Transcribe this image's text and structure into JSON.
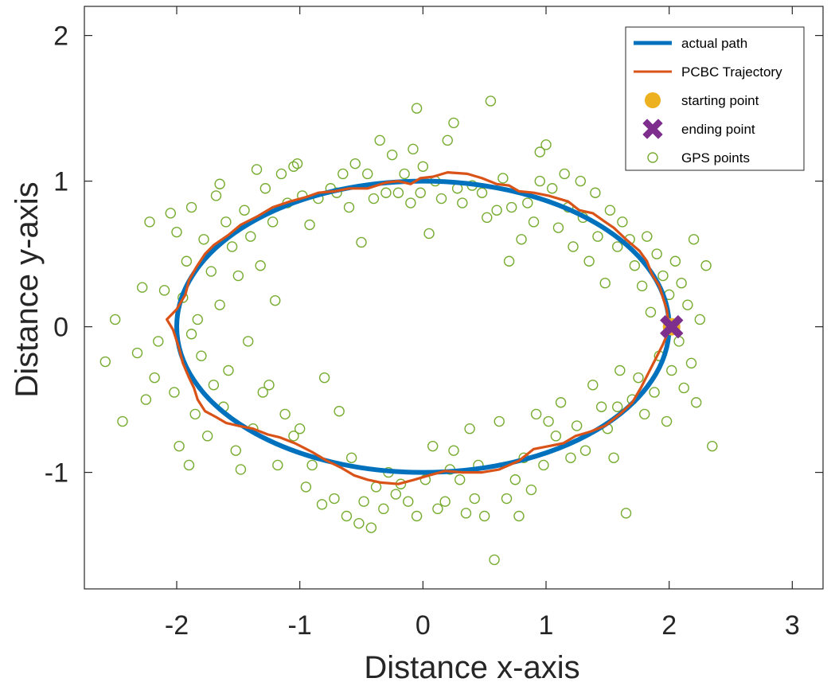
{
  "chart_data": {
    "type": "scatter",
    "xlabel": "Distance x-axis",
    "ylabel": "Distance y-axis",
    "xlim": [
      -2.75,
      3.25
    ],
    "ylim": [
      -1.8,
      2.2
    ],
    "xticks": [
      -2,
      -1,
      0,
      1,
      2,
      3
    ],
    "yticks": [
      -1,
      0,
      1,
      2
    ],
    "grid": false,
    "legend_position": "top-right",
    "colors": {
      "actual_path": "#0072BD",
      "trajectory": "#D95319",
      "start": "#EDB120",
      "end": "#7E2F8E",
      "gps": "#77AC30"
    },
    "legend": [
      "actual path",
      "PCBC Trajectory",
      "starting point",
      "ending point",
      "GPS points"
    ],
    "series": [
      {
        "name": "actual path",
        "kind": "line",
        "shape": "ellipse",
        "center": [
          0,
          0
        ],
        "radius_x": 2,
        "radius_y": 1
      },
      {
        "name": "PCBC Trajectory",
        "kind": "line",
        "points": [
          [
            2.0,
            0.0
          ],
          [
            1.98,
            0.12
          ],
          [
            1.95,
            0.2
          ],
          [
            1.92,
            0.28
          ],
          [
            1.86,
            0.36
          ],
          [
            1.82,
            0.45
          ],
          [
            1.76,
            0.52
          ],
          [
            1.65,
            0.6
          ],
          [
            1.55,
            0.68
          ],
          [
            1.48,
            0.72
          ],
          [
            1.38,
            0.78
          ],
          [
            1.27,
            0.8
          ],
          [
            1.18,
            0.86
          ],
          [
            1.02,
            0.9
          ],
          [
            0.9,
            0.92
          ],
          [
            0.78,
            0.93
          ],
          [
            0.7,
            0.97
          ],
          [
            0.6,
            0.98
          ],
          [
            0.48,
            1.02
          ],
          [
            0.36,
            1.05
          ],
          [
            0.2,
            1.06
          ],
          [
            0.08,
            1.03
          ],
          [
            -0.02,
            1.02
          ],
          [
            -0.1,
            0.98
          ],
          [
            -0.2,
            1.0
          ],
          [
            -0.3,
            0.99
          ],
          [
            -0.45,
            0.95
          ],
          [
            -0.6,
            0.95
          ],
          [
            -0.72,
            0.93
          ],
          [
            -0.85,
            0.92
          ],
          [
            -0.95,
            0.89
          ],
          [
            -1.08,
            0.86
          ],
          [
            -1.22,
            0.82
          ],
          [
            -1.34,
            0.76
          ],
          [
            -1.48,
            0.7
          ],
          [
            -1.58,
            0.63
          ],
          [
            -1.7,
            0.56
          ],
          [
            -1.77,
            0.5
          ],
          [
            -1.84,
            0.41
          ],
          [
            -1.9,
            0.32
          ],
          [
            -1.93,
            0.22
          ],
          [
            -2.0,
            0.12
          ],
          [
            -2.08,
            0.05
          ],
          [
            -2.03,
            -0.02
          ],
          [
            -1.98,
            -0.15
          ],
          [
            -1.95,
            -0.25
          ],
          [
            -1.9,
            -0.35
          ],
          [
            -1.86,
            -0.42
          ],
          [
            -1.83,
            -0.5
          ],
          [
            -1.77,
            -0.58
          ],
          [
            -1.68,
            -0.62
          ],
          [
            -1.6,
            -0.66
          ],
          [
            -1.5,
            -0.68
          ],
          [
            -1.38,
            -0.7
          ],
          [
            -1.26,
            -0.74
          ],
          [
            -1.16,
            -0.76
          ],
          [
            -1.04,
            -0.8
          ],
          [
            -0.9,
            -0.86
          ],
          [
            -0.78,
            -0.92
          ],
          [
            -0.66,
            -0.97
          ],
          [
            -0.56,
            -1.02
          ],
          [
            -0.45,
            -1.05
          ],
          [
            -0.34,
            -1.07
          ],
          [
            -0.2,
            -1.08
          ],
          [
            -0.07,
            -1.05
          ],
          [
            0.05,
            -1.02
          ],
          [
            0.18,
            -0.99
          ],
          [
            0.32,
            -1.0
          ],
          [
            0.48,
            -1.0
          ],
          [
            0.62,
            -0.98
          ],
          [
            0.78,
            -0.92
          ],
          [
            0.9,
            -0.84
          ],
          [
            1.02,
            -0.82
          ],
          [
            1.14,
            -0.8
          ],
          [
            1.24,
            -0.75
          ],
          [
            1.36,
            -0.72
          ],
          [
            1.48,
            -0.68
          ],
          [
            1.6,
            -0.6
          ],
          [
            1.7,
            -0.52
          ],
          [
            1.77,
            -0.42
          ],
          [
            1.83,
            -0.32
          ],
          [
            1.89,
            -0.22
          ],
          [
            1.95,
            -0.12
          ],
          [
            2.0,
            -0.02
          ]
        ]
      },
      {
        "name": "starting point",
        "kind": "marker",
        "marker": "circle",
        "points": [
          [
            2.02,
            0.0
          ]
        ]
      },
      {
        "name": "ending point",
        "kind": "marker",
        "marker": "x",
        "points": [
          [
            2.02,
            0.0
          ]
        ]
      },
      {
        "name": "GPS points",
        "kind": "scatter",
        "marker": "open-circle",
        "points": [
          [
            -2.58,
            -0.24
          ],
          [
            -2.5,
            0.05
          ],
          [
            -2.44,
            -0.65
          ],
          [
            -2.32,
            -0.18
          ],
          [
            -2.28,
            0.27
          ],
          [
            -2.25,
            -0.5
          ],
          [
            -2.22,
            0.72
          ],
          [
            -2.18,
            -0.35
          ],
          [
            -2.15,
            -0.1
          ],
          [
            -2.1,
            0.25
          ],
          [
            -2.05,
            0.78
          ],
          [
            -2.02,
            -0.45
          ],
          [
            -1.98,
            -0.82
          ],
          [
            -1.95,
            0.2
          ],
          [
            -1.92,
            0.45
          ],
          [
            -1.9,
            -0.95
          ],
          [
            -1.88,
            0.82
          ],
          [
            -1.85,
            -0.6
          ],
          [
            -1.83,
            0.05
          ],
          [
            -1.8,
            -0.2
          ],
          [
            -1.78,
            0.6
          ],
          [
            -1.75,
            -0.75
          ],
          [
            -1.72,
            0.38
          ],
          [
            -1.7,
            -0.4
          ],
          [
            -1.68,
            0.9
          ],
          [
            -1.65,
            0.15
          ],
          [
            -1.62,
            -0.55
          ],
          [
            -1.6,
            0.72
          ],
          [
            -1.58,
            -0.3
          ],
          [
            -1.55,
            0.55
          ],
          [
            -1.52,
            -0.85
          ],
          [
            -1.5,
            0.35
          ],
          [
            -1.48,
            -0.98
          ],
          [
            -1.45,
            0.8
          ],
          [
            -1.42,
            -0.1
          ],
          [
            -1.4,
            0.62
          ],
          [
            -1.38,
            -0.7
          ],
          [
            -1.35,
            1.08
          ],
          [
            -1.32,
            0.42
          ],
          [
            -1.3,
            -0.45
          ],
          [
            -1.28,
            0.95
          ],
          [
            -1.25,
            -0.4
          ],
          [
            -1.22,
            0.72
          ],
          [
            -1.2,
            0.18
          ],
          [
            -1.18,
            -0.95
          ],
          [
            -1.15,
            1.05
          ],
          [
            -1.12,
            -0.6
          ],
          [
            -1.1,
            0.85
          ],
          [
            -1.05,
            -0.75
          ],
          [
            -1.02,
            1.12
          ],
          [
            -1.0,
            -0.7
          ],
          [
            -0.98,
            0.9
          ],
          [
            -0.95,
            -1.1
          ],
          [
            -0.92,
            0.7
          ],
          [
            -0.9,
            -0.95
          ],
          [
            -0.85,
            0.88
          ],
          [
            -0.82,
            -1.22
          ],
          [
            -0.8,
            -0.35
          ],
          [
            -0.75,
            0.95
          ],
          [
            -0.72,
            -1.18
          ],
          [
            -0.7,
            0.92
          ],
          [
            -0.68,
            -0.58
          ],
          [
            -0.65,
            1.05
          ],
          [
            -0.62,
            -1.3
          ],
          [
            -0.6,
            0.82
          ],
          [
            -0.58,
            -0.9
          ],
          [
            -0.55,
            1.12
          ],
          [
            -0.52,
            -1.35
          ],
          [
            -0.5,
            0.58
          ],
          [
            -0.48,
            -1.2
          ],
          [
            -0.45,
            1.05
          ],
          [
            -0.42,
            -1.38
          ],
          [
            -0.4,
            0.88
          ],
          [
            -0.38,
            -1.1
          ],
          [
            -0.35,
            1.28
          ],
          [
            -0.32,
            -1.25
          ],
          [
            -0.3,
            0.92
          ],
          [
            -0.28,
            -1.0
          ],
          [
            -0.25,
            1.18
          ],
          [
            -0.22,
            -1.15
          ],
          [
            -0.2,
            0.92
          ],
          [
            -0.18,
            -1.08
          ],
          [
            -0.15,
            1.05
          ],
          [
            -0.12,
            -1.2
          ],
          [
            -0.1,
            0.85
          ],
          [
            -0.08,
            1.22
          ],
          [
            -0.05,
            -1.3
          ],
          [
            -0.02,
            0.92
          ],
          [
            0.0,
            1.1
          ],
          [
            0.02,
            -1.05
          ],
          [
            0.05,
            0.64
          ],
          [
            0.08,
            -0.82
          ],
          [
            0.1,
            1.0
          ],
          [
            0.12,
            -1.25
          ],
          [
            0.15,
            0.88
          ],
          [
            0.18,
            -1.2
          ],
          [
            0.2,
            1.28
          ],
          [
            0.22,
            -0.98
          ],
          [
            0.25,
            -0.85
          ],
          [
            0.28,
            0.95
          ],
          [
            0.3,
            -1.05
          ],
          [
            0.32,
            0.85
          ],
          [
            0.35,
            -1.28
          ],
          [
            0.38,
            -0.7
          ],
          [
            0.4,
            0.97
          ],
          [
            0.42,
            -1.18
          ],
          [
            0.45,
            -0.95
          ],
          [
            0.48,
            0.92
          ],
          [
            0.5,
            -1.3
          ],
          [
            0.52,
            0.75
          ],
          [
            0.55,
            1.55
          ],
          [
            0.58,
            -1.6
          ],
          [
            0.6,
            0.8
          ],
          [
            0.62,
            -0.65
          ],
          [
            0.65,
            1.02
          ],
          [
            0.68,
            -1.18
          ],
          [
            0.7,
            0.45
          ],
          [
            0.72,
            0.82
          ],
          [
            0.75,
            -1.05
          ],
          [
            0.78,
            -1.3
          ],
          [
            0.8,
            0.6
          ],
          [
            0.82,
            -0.9
          ],
          [
            0.85,
            0.85
          ],
          [
            0.88,
            -1.12
          ],
          [
            0.9,
            0.72
          ],
          [
            0.92,
            -0.6
          ],
          [
            0.95,
            1.0
          ],
          [
            0.98,
            -0.95
          ],
          [
            1.0,
            1.25
          ],
          [
            1.02,
            -0.65
          ],
          [
            1.05,
            0.95
          ],
          [
            1.08,
            -0.75
          ],
          [
            1.1,
            0.68
          ],
          [
            1.12,
            -0.52
          ],
          [
            1.15,
            1.05
          ],
          [
            1.18,
            0.82
          ],
          [
            1.2,
            -0.9
          ],
          [
            1.22,
            0.55
          ],
          [
            1.25,
            -0.68
          ],
          [
            1.28,
            1.0
          ],
          [
            1.3,
            0.75
          ],
          [
            1.32,
            -0.85
          ],
          [
            1.35,
            0.45
          ],
          [
            1.38,
            -0.4
          ],
          [
            1.4,
            0.92
          ],
          [
            1.42,
            0.62
          ],
          [
            1.45,
            -0.55
          ],
          [
            1.48,
            0.3
          ],
          [
            1.5,
            -0.7
          ],
          [
            1.52,
            0.8
          ],
          [
            1.55,
            -0.9
          ],
          [
            1.58,
            0.55
          ],
          [
            1.6,
            -0.3
          ],
          [
            1.62,
            0.72
          ],
          [
            1.65,
            -1.28
          ],
          [
            1.68,
            0.6
          ],
          [
            1.7,
            -0.5
          ],
          [
            1.72,
            0.42
          ],
          [
            1.75,
            -0.35
          ],
          [
            1.78,
            0.28
          ],
          [
            1.8,
            -0.6
          ],
          [
            1.82,
            0.62
          ],
          [
            1.85,
            0.1
          ],
          [
            1.88,
            -0.45
          ],
          [
            1.9,
            0.5
          ],
          [
            1.92,
            -0.2
          ],
          [
            1.95,
            0.35
          ],
          [
            1.98,
            -0.65
          ],
          [
            2.0,
            0.22
          ],
          [
            2.02,
            -0.3
          ],
          [
            2.05,
            0.45
          ],
          [
            2.08,
            -0.1
          ],
          [
            2.1,
            0.3
          ],
          [
            2.12,
            -0.42
          ],
          [
            2.15,
            0.15
          ],
          [
            2.18,
            -0.25
          ],
          [
            2.2,
            0.6
          ],
          [
            2.22,
            -0.52
          ],
          [
            2.25,
            0.05
          ],
          [
            2.3,
            0.42
          ],
          [
            2.35,
            -0.82
          ],
          [
            -1.65,
            0.98
          ],
          [
            -0.05,
            1.5
          ],
          [
            0.25,
            1.4
          ],
          [
            -1.05,
            1.1
          ],
          [
            0.95,
            1.2
          ],
          [
            -2.0,
            0.65
          ],
          [
            -1.88,
            -0.05
          ],
          [
            1.58,
            -0.55
          ]
        ]
      }
    ]
  }
}
